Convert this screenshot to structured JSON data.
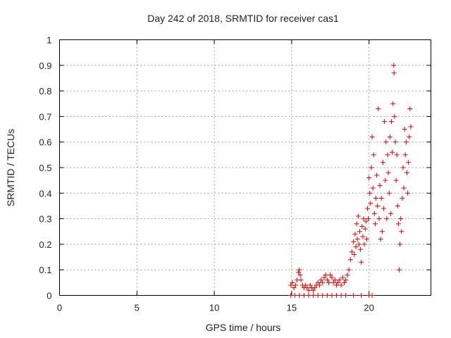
{
  "chart_data": {
    "type": "scatter",
    "title": "Day 242 of 2018, SRMTID for receiver cas1",
    "xlabel": "GPS time / hours",
    "ylabel": "SRMTID / TECUs",
    "xlim": [
      0,
      24
    ],
    "ylim": [
      0,
      1
    ],
    "xticks": [
      0,
      5,
      10,
      15,
      20
    ],
    "xtick_labels": [
      "0",
      "5",
      "10",
      "15",
      "20"
    ],
    "yticks": [
      0,
      0.1,
      0.2,
      0.3,
      0.4,
      0.5,
      0.6,
      0.7,
      0.8,
      0.9,
      1
    ],
    "ytick_labels": [
      "0",
      "0.1",
      "0.2",
      "0.3",
      "0.4",
      "0.5",
      "0.6",
      "0.7",
      "0.8",
      "0.9",
      "1"
    ],
    "grid": true,
    "marker": "+",
    "marker_color": "#e00000",
    "series": [
      {
        "name": "cas1",
        "x": [
          14.95,
          15.05,
          15.15,
          15.25,
          15.35,
          15.45,
          15.5,
          15.55,
          15.6,
          15.7,
          15.8,
          15.9,
          16.0,
          16.1,
          16.2,
          16.3,
          16.4,
          16.5,
          16.6,
          16.7,
          16.8,
          16.9,
          17.0,
          17.1,
          17.2,
          17.3,
          17.4,
          17.5,
          17.6,
          17.7,
          17.8,
          17.9,
          18.0,
          18.1,
          18.2,
          18.3,
          18.4,
          18.5,
          18.6,
          18.7,
          18.8,
          18.9,
          19.0,
          19.05,
          19.1,
          19.15,
          19.2,
          19.25,
          19.3,
          19.35,
          19.4,
          19.45,
          19.5,
          19.55,
          19.6,
          19.65,
          19.7,
          19.75,
          19.8,
          19.85,
          19.9,
          19.95,
          20.0,
          20.05,
          20.1,
          20.15,
          20.2,
          20.25,
          20.3,
          20.35,
          20.4,
          20.45,
          20.5,
          20.55,
          20.6,
          20.65,
          20.7,
          20.75,
          20.8,
          20.85,
          20.9,
          20.95,
          21.0,
          21.05,
          21.1,
          21.15,
          21.2,
          21.25,
          21.3,
          21.35,
          21.4,
          21.45,
          21.5,
          21.55,
          21.6,
          21.62,
          21.65,
          21.7,
          21.75,
          21.8,
          21.85,
          21.9,
          21.95,
          22.0,
          22.05,
          22.1,
          22.15,
          22.2,
          22.25,
          22.3,
          22.35,
          22.4,
          22.45,
          22.5,
          22.55,
          22.6,
          22.65,
          22.7,
          14.95,
          15.2,
          15.5,
          15.8,
          16.1,
          16.4,
          16.7,
          17.0,
          17.3,
          17.6,
          17.9,
          18.2,
          18.5,
          19.0,
          19.5,
          20.0,
          20.2
        ],
        "y": [
          0.04,
          0.05,
          0.03,
          0.04,
          0.06,
          0.09,
          0.1,
          0.08,
          0.06,
          0.04,
          0.03,
          0.04,
          0.03,
          0.02,
          0.04,
          0.03,
          0.02,
          0.03,
          0.04,
          0.05,
          0.04,
          0.06,
          0.05,
          0.07,
          0.08,
          0.06,
          0.05,
          0.08,
          0.07,
          0.05,
          0.06,
          0.04,
          0.05,
          0.06,
          0.04,
          0.07,
          0.05,
          0.06,
          0.08,
          0.1,
          0.14,
          0.17,
          0.21,
          0.16,
          0.24,
          0.19,
          0.28,
          0.22,
          0.31,
          0.2,
          0.25,
          0.18,
          0.13,
          0.27,
          0.23,
          0.3,
          0.2,
          0.26,
          0.29,
          0.22,
          0.34,
          0.3,
          0.46,
          0.4,
          0.36,
          0.5,
          0.62,
          0.42,
          0.55,
          0.32,
          0.28,
          0.38,
          0.47,
          0.35,
          0.73,
          0.3,
          0.43,
          0.22,
          0.38,
          0.25,
          0.52,
          0.34,
          0.68,
          0.45,
          0.6,
          0.3,
          0.55,
          0.48,
          0.4,
          0.62,
          0.32,
          0.68,
          0.56,
          0.75,
          0.9,
          0.87,
          0.7,
          0.6,
          0.45,
          0.55,
          0.35,
          0.28,
          0.1,
          0.2,
          0.3,
          0.25,
          0.38,
          0.5,
          0.42,
          0.65,
          0.55,
          0.6,
          0.48,
          0.4,
          0.52,
          0.62,
          0.73,
          0.66,
          0.0,
          0.0,
          0.0,
          0.0,
          0.0,
          0.0,
          0.0,
          0.0,
          0.0,
          0.0,
          0.0,
          0.0,
          0.0,
          0.0,
          0.0,
          0.0,
          0.0
        ]
      }
    ]
  }
}
